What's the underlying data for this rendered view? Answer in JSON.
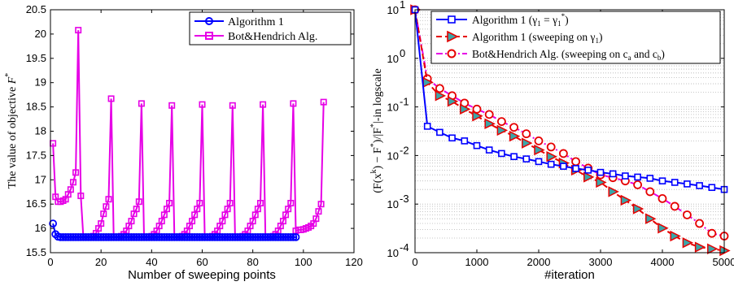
{
  "chart_data": [
    {
      "type": "line",
      "xlabel": "Number of sweeping points",
      "ylabel": "The value of objective F*",
      "xlim": [
        0,
        120
      ],
      "ylim": [
        15.5,
        20.5
      ],
      "xticks": [
        "0",
        "20",
        "40",
        "60",
        "80",
        "100",
        "120"
      ],
      "yticks": [
        "15.5",
        "16",
        "16.5",
        "17",
        "17.5",
        "18",
        "18.5",
        "19",
        "19.5",
        "20",
        "20.5"
      ],
      "grid": false,
      "legend_position": "top-right",
      "series": [
        {
          "name": "Algorithm 1",
          "color": "#0000ff",
          "marker": "circle",
          "x": [
            1,
            2,
            3,
            4,
            5,
            6,
            7,
            8,
            9,
            10,
            11,
            12,
            13,
            14,
            15,
            16,
            17,
            18,
            19,
            20,
            21,
            22,
            23,
            24,
            25,
            26,
            27,
            28,
            29,
            30,
            31,
            32,
            33,
            34,
            35,
            36,
            37,
            38,
            39,
            40,
            41,
            42,
            43,
            44,
            45,
            46,
            47,
            48,
            49,
            50,
            51,
            52,
            53,
            54,
            55,
            56,
            57,
            58,
            59,
            60,
            61,
            62,
            63,
            64,
            65,
            66,
            67,
            68,
            69,
            70,
            71,
            72,
            73,
            74,
            75,
            76,
            77,
            78,
            79,
            80,
            81,
            82,
            83,
            84,
            85,
            86,
            87,
            88,
            89,
            90,
            91,
            92,
            93,
            94,
            95,
            96,
            97
          ],
          "y": [
            16.1,
            15.88,
            15.83,
            15.82,
            15.82,
            15.82,
            15.82,
            15.82,
            15.82,
            15.82,
            15.82,
            15.82,
            15.82,
            15.82,
            15.82,
            15.82,
            15.82,
            15.82,
            15.82,
            15.82,
            15.82,
            15.82,
            15.82,
            15.82,
            15.82,
            15.82,
            15.82,
            15.82,
            15.82,
            15.82,
            15.82,
            15.82,
            15.82,
            15.82,
            15.82,
            15.82,
            15.82,
            15.82,
            15.82,
            15.82,
            15.82,
            15.82,
            15.82,
            15.82,
            15.82,
            15.82,
            15.82,
            15.82,
            15.82,
            15.82,
            15.82,
            15.82,
            15.82,
            15.82,
            15.82,
            15.82,
            15.82,
            15.82,
            15.82,
            15.82,
            15.82,
            15.82,
            15.82,
            15.82,
            15.82,
            15.82,
            15.82,
            15.82,
            15.82,
            15.82,
            15.82,
            15.82,
            15.82,
            15.82,
            15.82,
            15.82,
            15.82,
            15.82,
            15.82,
            15.82,
            15.82,
            15.82,
            15.82,
            15.82,
            15.82,
            15.82,
            15.82,
            15.82,
            15.82,
            15.82,
            15.82,
            15.82,
            15.82,
            15.82,
            15.82,
            15.82,
            15.82
          ]
        },
        {
          "name": "Bot&Hendrich Alg.",
          "color": "#e600e6",
          "marker": "square",
          "x": [
            1,
            2,
            3,
            4,
            5,
            6,
            7,
            8,
            9,
            10,
            11,
            12,
            13,
            14,
            15,
            16,
            17,
            18,
            19,
            20,
            21,
            22,
            23,
            24,
            25,
            26,
            27,
            28,
            29,
            30,
            31,
            32,
            33,
            34,
            35,
            36,
            37,
            38,
            39,
            40,
            41,
            42,
            43,
            44,
            45,
            46,
            47,
            48,
            49,
            50,
            51,
            52,
            53,
            54,
            55,
            56,
            57,
            58,
            59,
            60,
            61,
            62,
            63,
            64,
            65,
            66,
            67,
            68,
            69,
            70,
            71,
            72,
            73,
            74,
            75,
            76,
            77,
            78,
            79,
            80,
            81,
            82,
            83,
            84,
            85,
            86,
            87,
            88,
            89,
            90,
            91,
            92,
            93,
            94,
            95,
            96,
            97,
            98,
            99,
            100,
            101,
            102,
            103,
            104,
            105,
            106,
            107,
            108
          ],
          "y": [
            17.75,
            16.65,
            16.55,
            16.55,
            16.57,
            16.6,
            16.7,
            16.8,
            16.95,
            17.15,
            20.08,
            16.67,
            15.82,
            15.82,
            15.82,
            15.82,
            15.84,
            15.9,
            16.0,
            16.1,
            16.3,
            16.45,
            16.6,
            18.67,
            15.82,
            15.82,
            15.82,
            15.84,
            15.88,
            15.95,
            16.05,
            16.15,
            16.3,
            16.4,
            16.55,
            18.57,
            15.82,
            15.82,
            15.82,
            15.84,
            15.88,
            15.95,
            16.05,
            16.15,
            16.28,
            16.4,
            16.52,
            18.53,
            15.82,
            15.82,
            15.82,
            15.84,
            15.88,
            15.95,
            16.05,
            16.15,
            16.28,
            16.4,
            16.52,
            18.55,
            15.82,
            15.82,
            15.82,
            15.84,
            15.88,
            15.95,
            16.05,
            16.15,
            16.28,
            16.4,
            16.52,
            18.53,
            15.82,
            15.82,
            15.82,
            15.84,
            15.88,
            15.95,
            16.05,
            16.15,
            16.28,
            16.4,
            16.52,
            18.55,
            15.82,
            15.82,
            15.82,
            15.84,
            15.88,
            15.95,
            16.05,
            16.15,
            16.28,
            16.4,
            16.52,
            18.57,
            15.95,
            15.97,
            15.97,
            15.98,
            16.0,
            16.02,
            16.05,
            16.1,
            16.2,
            16.35,
            16.5,
            18.6
          ]
        }
      ]
    },
    {
      "type": "line",
      "xlabel": "#iteration",
      "ylabel": "(F(x^k) − F*)/|F*|-in logscale",
      "xlim": [
        0,
        5000
      ],
      "ylim": [
        0.0001,
        10
      ],
      "yscale": "log",
      "xticks": [
        "0",
        "1000",
        "2000",
        "3000",
        "4000",
        "5000"
      ],
      "ytick_bases": [
        "10",
        "10",
        "10",
        "10",
        "10",
        "10"
      ],
      "ytick_exponents": [
        "-4",
        "-3",
        "-2",
        "-1",
        "0",
        "1"
      ],
      "grid": "dotted y minor",
      "legend_position": "top",
      "series": [
        {
          "name": "Algorithm 1 (γ1 = γ1*)",
          "color": "#0000ff",
          "marker": "square",
          "x": [
            0,
            200,
            400,
            600,
            800,
            1000,
            1200,
            1400,
            1600,
            1800,
            2000,
            2200,
            2400,
            2600,
            2800,
            3000,
            3200,
            3400,
            3600,
            3800,
            4000,
            4200,
            4400,
            4600,
            4800,
            5000
          ],
          "y": [
            10,
            0.04,
            0.03,
            0.023,
            0.02,
            0.016,
            0.013,
            0.011,
            0.0095,
            0.0085,
            0.0075,
            0.0066,
            0.006,
            0.0054,
            0.005,
            0.0045,
            0.0042,
            0.0038,
            0.0036,
            0.0034,
            0.003,
            0.0028,
            0.0026,
            0.0024,
            0.0022,
            0.002
          ]
        },
        {
          "name": "Algorithm 1 (sweeping on γ1)",
          "color": "#e60000",
          "marker": "triangle-right",
          "x": [
            0,
            200,
            400,
            600,
            800,
            1000,
            1200,
            1400,
            1600,
            1800,
            2000,
            2200,
            2400,
            2600,
            2800,
            3000,
            3200,
            3400,
            3600,
            3800,
            4000,
            4200,
            4400,
            4600,
            4800,
            5000
          ],
          "y": [
            10,
            0.32,
            0.17,
            0.13,
            0.09,
            0.065,
            0.045,
            0.033,
            0.025,
            0.018,
            0.013,
            0.0095,
            0.007,
            0.005,
            0.0036,
            0.0028,
            0.0018,
            0.0012,
            0.0008,
            0.0005,
            0.00032,
            0.00022,
            0.00016,
            0.00013,
            0.00012,
            0.00011
          ]
        },
        {
          "name": "Bot&Hendrich Alg. (sweeping on ca and cb)",
          "color": "#e600e6",
          "marker": "circle",
          "x": [
            0,
            200,
            400,
            600,
            800,
            1000,
            1200,
            1400,
            1600,
            1800,
            2000,
            2200,
            2400,
            2600,
            2800,
            3000,
            3200,
            3400,
            3600,
            3800,
            4000,
            4200,
            4400,
            4600,
            4800,
            5000
          ],
          "y": [
            10,
            0.38,
            0.24,
            0.17,
            0.12,
            0.09,
            0.07,
            0.05,
            0.038,
            0.028,
            0.02,
            0.015,
            0.011,
            0.0075,
            0.0055,
            0.004,
            0.0035,
            0.003,
            0.0025,
            0.0018,
            0.0013,
            0.0009,
            0.0006,
            0.0004,
            0.00025,
            0.00022
          ]
        }
      ]
    }
  ],
  "legend1": {
    "item1": "Algorithm 1",
    "item2": "Bot&Hendrich Alg."
  },
  "legend2": {
    "item1_text": "Algorithm 1",
    "item1_math": "(γ",
    "item1_sub": "1",
    "item1_eq": " = γ",
    "item1_sub2": "1",
    "item1_sup": "*",
    "item1_close": ")",
    "item2_text": "Algorithm 1 (sweeping on γ",
    "item2_sub": "1",
    "item2_close": ")",
    "item3_text": "Bot&Hendrich Alg. (sweeping on c",
    "item3_sub1": "a",
    "item3_mid": " and c",
    "item3_sub2": "b",
    "item3_close": ")"
  },
  "ylabel1_parts": {
    "text": "The value of objective ",
    "math": "F",
    "sup": "*"
  },
  "ylabel2_parts": {
    "p1": "(F(x",
    "sup1": "k",
    "p2": ") − F",
    "sup2": "*",
    "p3": ")/|F",
    "sup3": "*",
    "p4": "|-in logscale"
  }
}
